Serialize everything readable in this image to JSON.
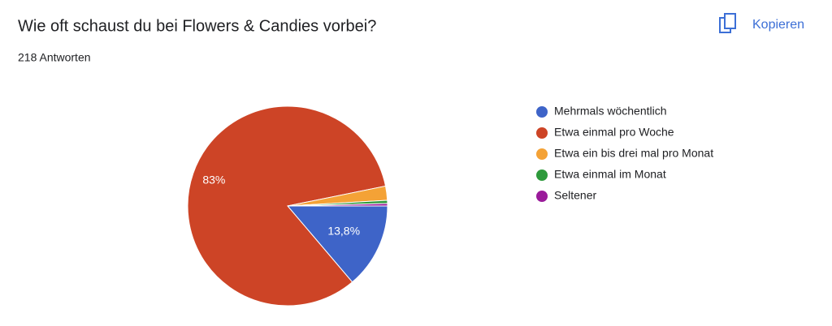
{
  "header": {
    "title": "Wie oft schaust du bei Flowers & Candies vorbei?",
    "subtitle": "218 Antworten",
    "button": "Kopieren"
  },
  "chart_data": {
    "type": "pie",
    "categories": [
      "Mehrmals wöchentlich",
      "Etwa einmal pro Woche",
      "Etwa ein bis drei mal pro Monat",
      "Etwa einmal im Monat",
      "Seltener"
    ],
    "values": [
      13.8,
      83,
      2.3,
      0.5,
      0.4
    ],
    "value_labels": [
      "13,8%",
      "83%",
      null,
      null,
      null
    ],
    "colors": [
      "#3e64c8",
      "#cd4426",
      "#f4a236",
      "#2e9a3c",
      "#9a1b9a"
    ],
    "legend": "right"
  }
}
